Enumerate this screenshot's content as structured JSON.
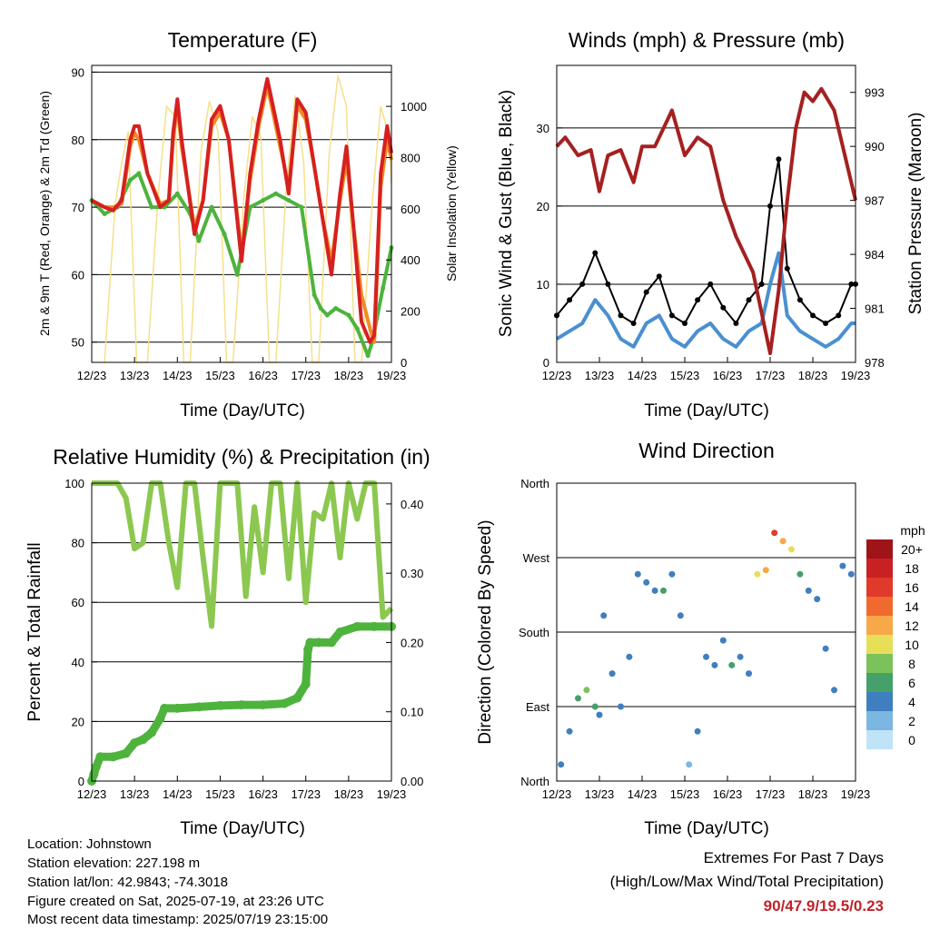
{
  "charts": {
    "time_ticks": [
      "12/23",
      "13/23",
      "14/23",
      "15/23",
      "16/23",
      "17/23",
      "18/23",
      "19/23"
    ],
    "time_label": "Time (Day/UTC)",
    "temperature": {
      "title": "Temperature (F)",
      "ylabel_left": "2m & 9m T (Red, Orange) & 2m Td (Green)",
      "ylabel_right": "Solar Insolation (Yellow)",
      "left_ticks": [
        "50",
        "60",
        "70",
        "80",
        "90"
      ],
      "right_ticks": [
        "0",
        "200",
        "400",
        "600",
        "800",
        "1000"
      ]
    },
    "winds": {
      "title": "Winds (mph) & Pressure (mb)",
      "ylabel_left": "Sonic Wind & Gust (Blue, Black)",
      "ylabel_right": "Station Pressure (Maroon)",
      "left_ticks": [
        "0",
        "10",
        "20",
        "30"
      ],
      "right_ticks": [
        "978",
        "981",
        "984",
        "987",
        "990",
        "993"
      ]
    },
    "humidity": {
      "title": "Relative Humidity (%) & Precipitation (in)",
      "ylabel_left": "Percent & Total Rainfall",
      "left_ticks": [
        "0",
        "20",
        "40",
        "60",
        "80",
        "100"
      ],
      "right_ticks": [
        "0.00",
        "0.10",
        "0.20",
        "0.30",
        "0.40"
      ]
    },
    "direction": {
      "title": "Wind Direction",
      "ylabel_left": "Direction (Colored By Speed)",
      "dir_ticks": [
        "North",
        "East",
        "South",
        "West",
        "North"
      ],
      "legend_unit": "mph",
      "legend_labels": [
        "20+",
        "18",
        "16",
        "14",
        "12",
        "10",
        "8",
        "6",
        "4",
        "2",
        "0"
      ]
    }
  },
  "chart_data": [
    {
      "type": "line",
      "title": "Temperature (F)",
      "xlabel": "Time (Day/UTC)",
      "ylabel": "2m & 9m T (Red, Orange) & 2m Td (Green)",
      "y2label": "Solar Insolation (Yellow)",
      "x_unit": "days from 12/23",
      "xlim": [
        0,
        7
      ],
      "ylim": [
        47,
        91
      ],
      "y2lim": [
        0,
        1160
      ],
      "series": [
        {
          "name": "2m T",
          "color": "#d62020",
          "x": [
            0,
            0.3,
            0.5,
            0.7,
            0.9,
            1.0,
            1.1,
            1.3,
            1.6,
            1.8,
            1.9,
            2.0,
            2.1,
            2.4,
            2.6,
            2.8,
            3.0,
            3.2,
            3.5,
            3.7,
            3.9,
            4.1,
            4.4,
            4.6,
            4.8,
            5.0,
            5.2,
            5.4,
            5.6,
            5.8,
            5.95,
            6.1,
            6.3,
            6.5,
            6.6,
            6.75,
            6.9,
            7.0
          ],
          "y": [
            71,
            70,
            69.5,
            71,
            80,
            82,
            82,
            75,
            70,
            71,
            81,
            86,
            80,
            66,
            71,
            83,
            85,
            80,
            62,
            75,
            83,
            89,
            80,
            72,
            86,
            84,
            76,
            68,
            60,
            72,
            79,
            68,
            53,
            50,
            51,
            75,
            82,
            78
          ]
        },
        {
          "name": "9m T",
          "color": "#f28a24",
          "x": [
            0,
            0.3,
            0.5,
            0.7,
            0.9,
            1.0,
            1.1,
            1.3,
            1.6,
            1.8,
            1.9,
            2.0,
            2.1,
            2.4,
            2.6,
            2.8,
            3.0,
            3.2,
            3.5,
            3.7,
            3.9,
            4.1,
            4.4,
            4.6,
            4.8,
            5.0,
            5.2,
            5.4,
            5.6,
            5.8,
            5.95,
            6.1,
            6.3,
            6.5,
            6.6,
            6.75,
            6.9,
            7.0
          ],
          "y": [
            71,
            70,
            70,
            70.5,
            79,
            81,
            80,
            75,
            70.5,
            71,
            80,
            85,
            79,
            67,
            71,
            82,
            84,
            80,
            63,
            74,
            82,
            88,
            79,
            73,
            85,
            83,
            76,
            68,
            62,
            71,
            77,
            68,
            57,
            52,
            50,
            73,
            80,
            77
          ]
        },
        {
          "name": "2m Td",
          "color": "#4db33d",
          "x": [
            0,
            0.3,
            0.6,
            0.9,
            1.1,
            1.4,
            1.7,
            2.0,
            2.3,
            2.5,
            2.8,
            3.1,
            3.4,
            3.7,
            4.0,
            4.3,
            4.6,
            4.9,
            5.2,
            5.35,
            5.5,
            5.7,
            6.0,
            6.2,
            6.45,
            6.55,
            6.8,
            7.0
          ],
          "y": [
            71,
            69,
            70,
            74,
            75,
            70,
            70,
            72,
            69,
            65,
            70,
            66,
            60,
            70,
            71,
            72,
            71,
            70,
            57,
            55,
            54,
            55,
            54,
            52,
            48,
            50,
            58,
            64
          ]
        },
        {
          "name": "Solar Insolation",
          "color": "#f5e08a",
          "axis": "right",
          "x": [
            0.3,
            0.55,
            0.7,
            0.85,
            1.05,
            1.3,
            1.55,
            1.75,
            1.95,
            2.15,
            2.3,
            2.55,
            2.75,
            2.95,
            3.15,
            3.3,
            3.55,
            3.75,
            3.95,
            4.15,
            4.3,
            4.55,
            4.75,
            4.95,
            5.15,
            5.3,
            5.55,
            5.75,
            5.95,
            6.15,
            6.3,
            6.55,
            6.75,
            6.95,
            7.0
          ],
          "y": [
            0,
            620,
            780,
            900,
            0,
            0,
            650,
            1000,
            960,
            0,
            0,
            820,
            1020,
            900,
            0,
            0,
            640,
            960,
            880,
            0,
            0,
            700,
            1040,
            780,
            0,
            0,
            820,
            1120,
            1000,
            0,
            0,
            620,
            1000,
            880,
            700
          ]
        }
      ]
    },
    {
      "type": "line",
      "title": "Winds (mph) & Pressure (mb)",
      "xlabel": "Time (Day/UTC)",
      "ylabel": "Sonic Wind & Gust (Blue, Black)",
      "y2label": "Station Pressure (Maroon)",
      "x_unit": "days from 12/23",
      "xlim": [
        0,
        7
      ],
      "ylim": [
        0,
        38
      ],
      "y2lim": [
        978,
        994.5
      ],
      "series": [
        {
          "name": "Sonic Wind",
          "color": "#4a90d0",
          "x": [
            0,
            0.3,
            0.6,
            0.9,
            1.2,
            1.5,
            1.8,
            2.1,
            2.4,
            2.7,
            3.0,
            3.3,
            3.6,
            3.9,
            4.2,
            4.5,
            4.8,
            5.0,
            5.2,
            5.4,
            5.7,
            6.0,
            6.3,
            6.6,
            6.9,
            7.0
          ],
          "y": [
            3,
            4,
            5,
            8,
            6,
            3,
            2,
            5,
            6,
            3,
            2,
            4,
            5,
            3,
            2,
            4,
            5,
            10,
            14,
            6,
            4,
            3,
            2,
            3,
            5,
            5
          ]
        },
        {
          "name": "Gust",
          "color": "#000000",
          "x": [
            0,
            0.3,
            0.6,
            0.9,
            1.2,
            1.5,
            1.8,
            2.1,
            2.4,
            2.7,
            3.0,
            3.3,
            3.6,
            3.9,
            4.2,
            4.5,
            4.8,
            5.0,
            5.2,
            5.4,
            5.7,
            6.0,
            6.3,
            6.6,
            6.9,
            7.0
          ],
          "y": [
            6,
            8,
            10,
            14,
            10,
            6,
            5,
            9,
            11,
            6,
            5,
            8,
            10,
            7,
            5,
            8,
            10,
            20,
            26,
            12,
            8,
            6,
            5,
            6,
            10,
            10
          ]
        },
        {
          "name": "Station Pressure",
          "color": "#a52020",
          "axis": "right",
          "x": [
            0,
            0.2,
            0.5,
            0.8,
            1.0,
            1.2,
            1.5,
            1.8,
            2.0,
            2.3,
            2.7,
            3.0,
            3.3,
            3.6,
            3.9,
            4.2,
            4.6,
            5.0,
            5.2,
            5.4,
            5.6,
            5.8,
            6.0,
            6.2,
            6.5,
            6.8,
            7.0
          ],
          "y": [
            990,
            990.5,
            989.5,
            989.8,
            987.5,
            989.5,
            989.8,
            988,
            990,
            990,
            992,
            989.5,
            990.5,
            990,
            987,
            985,
            983,
            978.5,
            982,
            987,
            991,
            993,
            992.5,
            993.2,
            992,
            989,
            987
          ]
        }
      ]
    },
    {
      "type": "line",
      "title": "Relative Humidity (%) & Precipitation (in)",
      "xlabel": "Time (Day/UTC)",
      "ylabel": "Percent & Total Rainfall",
      "x_unit": "days from 12/23",
      "xlim": [
        0,
        7
      ],
      "ylim": [
        0,
        100
      ],
      "y2lim": [
        0,
        0.43
      ],
      "series": [
        {
          "name": "Relative Humidity",
          "color": "#8cc850",
          "x": [
            0,
            0.3,
            0.6,
            0.8,
            1.0,
            1.2,
            1.4,
            1.6,
            1.8,
            2.0,
            2.2,
            2.4,
            2.6,
            2.8,
            3.0,
            3.2,
            3.4,
            3.6,
            3.8,
            4.0,
            4.2,
            4.4,
            4.6,
            4.8,
            5.0,
            5.2,
            5.4,
            5.6,
            5.8,
            6.0,
            6.2,
            6.4,
            6.6,
            6.8,
            7.0
          ],
          "y": [
            100,
            100,
            100,
            95,
            78,
            80,
            100,
            100,
            80,
            65,
            100,
            100,
            75,
            52,
            100,
            100,
            100,
            62,
            92,
            70,
            100,
            100,
            68,
            100,
            60,
            90,
            88,
            100,
            75,
            100,
            88,
            100,
            100,
            55,
            58
          ]
        },
        {
          "name": "Total Rainfall",
          "color": "#4db33d",
          "axis": "right",
          "x": [
            0,
            0.05,
            0.1,
            0.2,
            0.5,
            0.8,
            1.0,
            1.2,
            1.4,
            1.6,
            1.7,
            2.0,
            2.5,
            3.0,
            3.5,
            4.0,
            4.5,
            4.8,
            5.0,
            5.05,
            5.1,
            5.3,
            5.6,
            5.8,
            6.2,
            6.6,
            7.0
          ],
          "y": [
            0.0,
            0.01,
            0.02,
            0.035,
            0.035,
            0.04,
            0.055,
            0.06,
            0.07,
            0.09,
            0.105,
            0.105,
            0.107,
            0.109,
            0.11,
            0.11,
            0.112,
            0.12,
            0.14,
            0.19,
            0.2,
            0.2,
            0.2,
            0.215,
            0.223,
            0.223,
            0.223
          ]
        }
      ]
    },
    {
      "type": "scatter",
      "title": "Wind Direction",
      "xlabel": "Time (Day/UTC)",
      "ylabel": "Direction (Colored By Speed)",
      "x_unit": "days from 12/23",
      "xlim": [
        0,
        7
      ],
      "y_categories": [
        "North",
        "East",
        "South",
        "West",
        "North"
      ],
      "color_scale": {
        "unit": "mph",
        "labels": [
          "20+",
          "18",
          "16",
          "14",
          "12",
          "10",
          "8",
          "6",
          "4",
          "2",
          "0"
        ],
        "colors": [
          "#9e1418",
          "#c92024",
          "#e03a2a",
          "#f06a30",
          "#f7a848",
          "#e8df58",
          "#7cc25a",
          "#45a06a",
          "#3f7fbf",
          "#7cb6e2",
          "#bfe3f7"
        ]
      },
      "series": [
        {
          "name": "direction (deg)",
          "x": [
            0.1,
            0.3,
            0.5,
            0.7,
            0.9,
            1.0,
            1.1,
            1.3,
            1.5,
            1.7,
            1.9,
            2.1,
            2.3,
            2.5,
            2.7,
            2.9,
            3.1,
            3.3,
            3.5,
            3.7,
            3.9,
            4.1,
            4.3,
            4.5,
            4.7,
            4.9,
            5.1,
            5.3,
            5.5,
            5.7,
            5.9,
            6.1,
            6.3,
            6.5,
            6.7,
            6.9
          ],
          "y": [
            20,
            60,
            100,
            110,
            90,
            80,
            200,
            130,
            90,
            150,
            250,
            240,
            230,
            230,
            250,
            200,
            20,
            60,
            150,
            140,
            170,
            140,
            150,
            130,
            250,
            255,
            300,
            290,
            280,
            250,
            230,
            220,
            160,
            110,
            260,
            250
          ],
          "speed": [
            3,
            4,
            6,
            7,
            6,
            4,
            3,
            4,
            3,
            3,
            4,
            3,
            3,
            5,
            4,
            3,
            2,
            3,
            3,
            4,
            3,
            5,
            4,
            4,
            9,
            12,
            16,
            12,
            9,
            6,
            4,
            3,
            3,
            3,
            4,
            3
          ]
        }
      ]
    }
  ],
  "info": {
    "location": "Location: Johnstown",
    "elevation": "Station elevation: 227.198 m",
    "latlon": "Station lat/lon: 42.9843; -74.3018",
    "created": "Figure created on Sat, 2025-07-19, at 23:26 UTC",
    "recent": "Most recent data timestamp: 2025/07/19 23:15:00"
  },
  "extremes": {
    "title": "Extremes For Past 7 Days",
    "subtitle": "(High/Low/Max Wind/Total Precipitation)",
    "values": "90/47.9/19.5/0.23"
  }
}
